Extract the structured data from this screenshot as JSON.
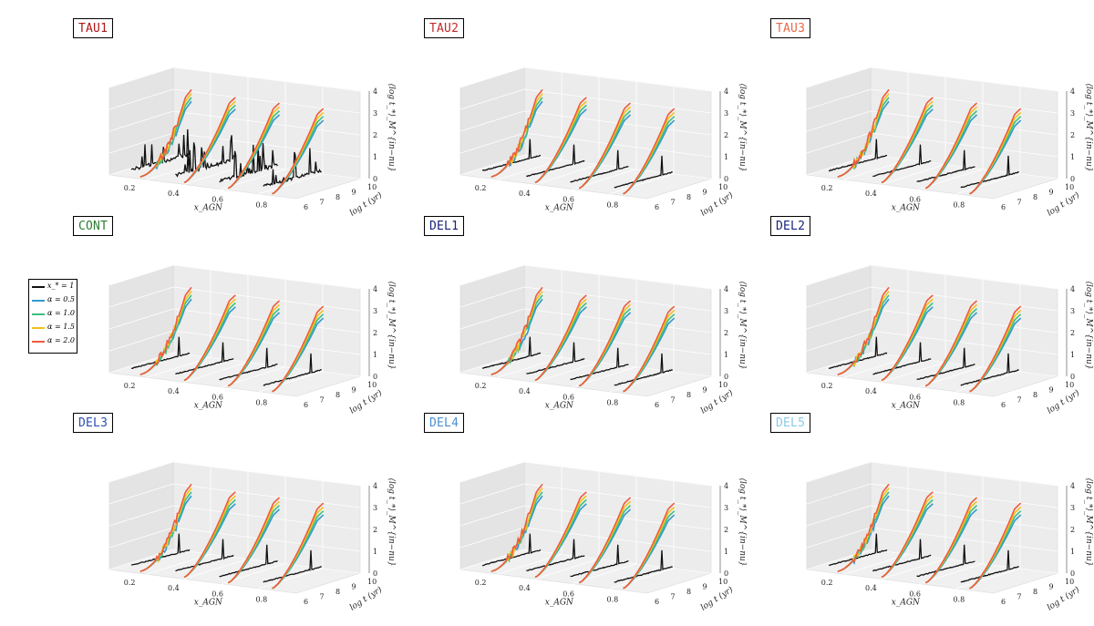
{
  "colors": {
    "black": "#111111",
    "a05": "#3399cc",
    "a10": "#3dc07f",
    "a15": "#f0c21b",
    "a20": "#f05a3c"
  },
  "axes": {
    "xlabel": "x_AGN",
    "ylabel": "log t (yr)",
    "zlabel": "⟨log t_*⟩_M^{in−nu}",
    "x_ticks": [
      "0.2",
      "0.4",
      "0.6",
      "0.8"
    ],
    "y_ticks": [
      "6",
      "7",
      "8",
      "9",
      "10"
    ],
    "z_ticks": [
      "0",
      "1",
      "2",
      "3",
      "4"
    ]
  },
  "legend": {
    "entries": [
      {
        "label": "x_* = 1",
        "color": "#111111"
      },
      {
        "label": "α = 0.5",
        "color": "#3399cc"
      },
      {
        "label": "α = 1.0",
        "color": "#3dc07f"
      },
      {
        "label": "α = 1.5",
        "color": "#f0c21b"
      },
      {
        "label": "α = 2.0",
        "color": "#f05a3c"
      }
    ]
  },
  "chart_data": [
    {
      "type": "line",
      "title": "TAU1",
      "title_color": "#b01818",
      "slices_x": [
        0.2,
        0.4,
        0.6,
        0.8
      ],
      "series": [
        {
          "name": "x_* = 1"
        },
        {
          "name": "α = 0.5"
        },
        {
          "name": "α = 1.0"
        },
        {
          "name": "α = 1.5"
        },
        {
          "name": "α = 2.0"
        }
      ],
      "xlabel": "x_AGN",
      "ylabel": "log t (yr)",
      "zlabel": "⟨log t_*⟩_M^{in−nu}",
      "zlim": [
        0,
        4
      ]
    },
    {
      "type": "line",
      "title": "TAU2",
      "title_color": "#c62828",
      "slices_x": [
        0.2,
        0.4,
        0.6,
        0.8
      ],
      "series": [
        {
          "name": "x_* = 1"
        },
        {
          "name": "α = 0.5"
        },
        {
          "name": "α = 1.0"
        },
        {
          "name": "α = 1.5"
        },
        {
          "name": "α = 2.0"
        }
      ],
      "xlabel": "x_AGN",
      "ylabel": "log t (yr)",
      "zlabel": "⟨log t_*⟩_M^{in−nu}",
      "zlim": [
        0,
        4
      ]
    },
    {
      "type": "line",
      "title": "TAU3",
      "title_color": "#e86a4a",
      "slices_x": [
        0.2,
        0.4,
        0.6,
        0.8
      ],
      "series": [
        {
          "name": "x_* = 1"
        },
        {
          "name": "α = 0.5"
        },
        {
          "name": "α = 1.0"
        },
        {
          "name": "α = 1.5"
        },
        {
          "name": "α = 2.0"
        }
      ],
      "xlabel": "x_AGN",
      "ylabel": "log t (yr)",
      "zlabel": "⟨log t_*⟩_M^{in−nu}",
      "zlim": [
        0,
        4
      ]
    },
    {
      "type": "line",
      "title": "CONT",
      "title_color": "#2e7d32",
      "slices_x": [
        0.2,
        0.4,
        0.6,
        0.8
      ],
      "series": [
        {
          "name": "x_* = 1"
        },
        {
          "name": "α = 0.5"
        },
        {
          "name": "α = 1.0"
        },
        {
          "name": "α = 1.5"
        },
        {
          "name": "α = 2.0"
        }
      ],
      "xlabel": "x_AGN",
      "ylabel": "log t (yr)",
      "zlabel": "⟨log t_*⟩_M^{in−nu}",
      "zlim": [
        0,
        4
      ]
    },
    {
      "type": "line",
      "title": "DEL1",
      "title_color": "#1a237e",
      "slices_x": [
        0.2,
        0.4,
        0.6,
        0.8
      ],
      "series": [
        {
          "name": "x_* = 1"
        },
        {
          "name": "α = 0.5"
        },
        {
          "name": "α = 1.0"
        },
        {
          "name": "α = 1.5"
        },
        {
          "name": "α = 2.0"
        }
      ],
      "xlabel": "x_AGN",
      "ylabel": "log t (yr)",
      "zlabel": "⟨log t_*⟩_M^{in−nu}",
      "zlim": [
        0,
        4
      ]
    },
    {
      "type": "line",
      "title": "DEL2",
      "title_color": "#1a237e",
      "slices_x": [
        0.2,
        0.4,
        0.6,
        0.8
      ],
      "series": [
        {
          "name": "x_* = 1"
        },
        {
          "name": "α = 0.5"
        },
        {
          "name": "α = 1.0"
        },
        {
          "name": "α = 1.5"
        },
        {
          "name": "α = 2.0"
        }
      ],
      "xlabel": "x_AGN",
      "ylabel": "log t (yr)",
      "zlabel": "⟨log t_*⟩_M^{in−nu}",
      "zlim": [
        0,
        4
      ]
    },
    {
      "type": "line",
      "title": "DEL3",
      "title_color": "#2c4fb3",
      "slices_x": [
        0.2,
        0.4,
        0.6,
        0.8
      ],
      "series": [
        {
          "name": "x_* = 1"
        },
        {
          "name": "α = 0.5"
        },
        {
          "name": "α = 1.0"
        },
        {
          "name": "α = 1.5"
        },
        {
          "name": "α = 2.0"
        }
      ],
      "xlabel": "x_AGN",
      "ylabel": "log t (yr)",
      "zlabel": "⟨log t_*⟩_M^{in−nu}",
      "zlim": [
        0,
        4
      ]
    },
    {
      "type": "line",
      "title": "DEL4",
      "title_color": "#4a8fd0",
      "slices_x": [
        0.2,
        0.4,
        0.6,
        0.8
      ],
      "series": [
        {
          "name": "x_* = 1"
        },
        {
          "name": "α = 0.5"
        },
        {
          "name": "α = 1.0"
        },
        {
          "name": "α = 1.5"
        },
        {
          "name": "α = 2.0"
        }
      ],
      "xlabel": "x_AGN",
      "ylabel": "log t (yr)",
      "zlabel": "⟨log t_*⟩_M^{in−nu}",
      "zlim": [
        0,
        4
      ]
    },
    {
      "type": "line",
      "title": "DEL5",
      "title_color": "#8cc8e8",
      "slices_x": [
        0.2,
        0.4,
        0.6,
        0.8
      ],
      "series": [
        {
          "name": "x_* = 1"
        },
        {
          "name": "α = 0.5"
        },
        {
          "name": "α = 1.0"
        },
        {
          "name": "α = 1.5"
        },
        {
          "name": "α = 2.0"
        }
      ],
      "xlabel": "x_AGN",
      "ylabel": "log t (yr)",
      "zlabel": "⟨log t_*⟩_M^{in−nu}",
      "zlim": [
        0,
        4
      ]
    }
  ]
}
